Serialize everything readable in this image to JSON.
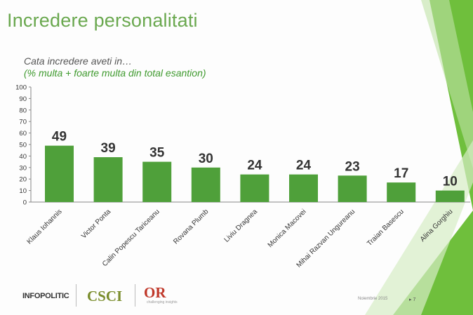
{
  "slide": {
    "title": "Incredere personalitati",
    "subtitle": "Cata incredere aveti in…",
    "subtitle_note": "(% multa + foarte multa din total esantion)"
  },
  "footer": {
    "logo_infopolitic": "INFOPOLITIC",
    "logo_csci": "CSCI",
    "logo_or": "OR",
    "logo_or_tagline": "challenging insights",
    "date": "Noiembrie 2015",
    "page": "▸ 7"
  },
  "colors": {
    "bar": "#4fa03a",
    "title": "#6aa84f",
    "deco_dark": "#6fbf3c",
    "deco_light": "#bfe3a6"
  },
  "chart_data": {
    "type": "bar",
    "categories": [
      "Klaus Iohannis",
      "Victor Ponta",
      "Calin Popescu Tariceanu",
      "Rovana Plumb",
      "Liviu Dragnea",
      "Monica Macovei",
      "Mihai Razvan Ungureanu",
      "Traian Basescu",
      "Alina Gorghiu"
    ],
    "values": [
      49,
      39,
      35,
      30,
      24,
      24,
      23,
      17,
      10
    ],
    "ylim": [
      0,
      100
    ],
    "yticks": [
      0,
      10,
      20,
      30,
      40,
      50,
      60,
      70,
      80,
      90,
      100
    ],
    "grid": false,
    "data_labels": true
  }
}
